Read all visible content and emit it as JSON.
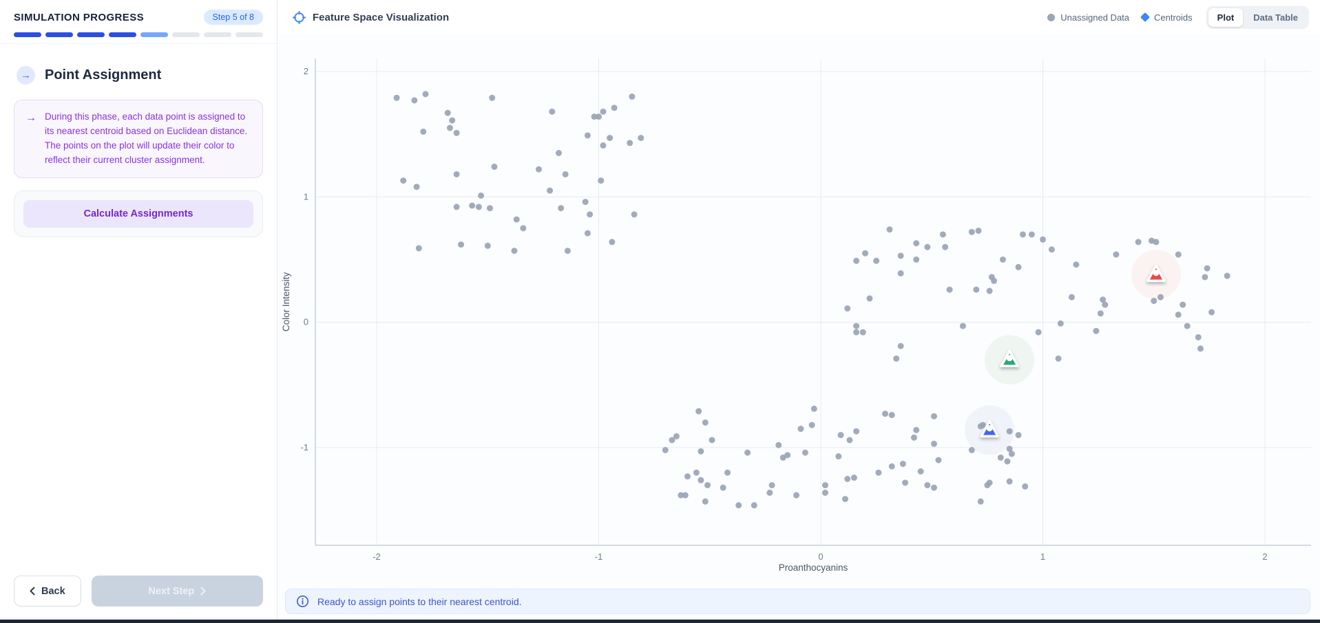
{
  "sidebar": {
    "progress_label": "SIMULATION PROGRESS",
    "step_badge": "Step 5 of 8",
    "progress": {
      "total": 8,
      "completed": 4,
      "current": 1,
      "colors": {
        "done": "#2b4fe0",
        "current": "#77a7f8",
        "upcoming": "#e4e7ec"
      }
    },
    "section": {
      "title": "Point Assignment",
      "description": "During this phase, each data point is assigned to its nearest centroid based on Euclidean distance. The points on the plot will update their color to reflect their current cluster assignment."
    },
    "action_button": "Calculate Assignments",
    "back_button": "Back",
    "next_button": "Next Step"
  },
  "main": {
    "title": "Feature Space Visualization",
    "legend": [
      {
        "label": "Unassigned Data",
        "marker": "circle",
        "color": "#9aa5b6"
      },
      {
        "label": "Centroids",
        "marker": "triangle",
        "color": "#4285f4"
      }
    ],
    "view_toggle": {
      "options": [
        "Plot",
        "Data Table"
      ],
      "active": "Plot"
    },
    "status": "Ready to assign points to their nearest centroid."
  },
  "chart_data": {
    "type": "scatter",
    "title": "Feature Space Visualization",
    "xlabel": "Proanthocyanins",
    "ylabel": "Color Intensity",
    "xlim": [
      -2.28,
      2.2
    ],
    "ylim": [
      -1.78,
      2.1
    ],
    "xticks": [
      -2,
      -1,
      0,
      1,
      2
    ],
    "yticks": [
      -1,
      0,
      1,
      2
    ],
    "grid": true,
    "legend_position": "top-right",
    "series": [
      {
        "name": "Unassigned Data",
        "marker": "circle",
        "color": "#97a2b4",
        "points": [
          [
            -1.91,
            1.79
          ],
          [
            -1.83,
            1.77
          ],
          [
            -1.78,
            1.82
          ],
          [
            -1.68,
            1.67
          ],
          [
            -1.66,
            1.61
          ],
          [
            -1.67,
            1.55
          ],
          [
            -1.64,
            1.51
          ],
          [
            -1.79,
            1.52
          ],
          [
            -1.48,
            1.79
          ],
          [
            -1.21,
            1.68
          ],
          [
            -1.02,
            1.64
          ],
          [
            -1.0,
            1.64
          ],
          [
            -0.98,
            1.68
          ],
          [
            -0.93,
            1.71
          ],
          [
            -0.85,
            1.8
          ],
          [
            -1.05,
            1.49
          ],
          [
            -0.95,
            1.47
          ],
          [
            -0.86,
            1.43
          ],
          [
            -0.81,
            1.47
          ],
          [
            -0.98,
            1.41
          ],
          [
            -1.18,
            1.35
          ],
          [
            -1.47,
            1.24
          ],
          [
            -1.27,
            1.22
          ],
          [
            -1.15,
            1.18
          ],
          [
            -1.64,
            1.18
          ],
          [
            -1.88,
            1.13
          ],
          [
            -1.82,
            1.08
          ],
          [
            -0.99,
            1.13
          ],
          [
            -1.22,
            1.05
          ],
          [
            -1.53,
            1.01
          ],
          [
            -1.64,
            0.92
          ],
          [
            -1.57,
            0.93
          ],
          [
            -1.54,
            0.92
          ],
          [
            -1.49,
            0.91
          ],
          [
            -1.06,
            0.96
          ],
          [
            -1.17,
            0.91
          ],
          [
            -1.37,
            0.82
          ],
          [
            -1.34,
            0.75
          ],
          [
            -1.04,
            0.86
          ],
          [
            -0.84,
            0.86
          ],
          [
            -1.05,
            0.71
          ],
          [
            -0.94,
            0.64
          ],
          [
            -1.62,
            0.62
          ],
          [
            -1.5,
            0.61
          ],
          [
            -1.81,
            0.59
          ],
          [
            -1.38,
            0.57
          ],
          [
            -1.14,
            0.57
          ],
          [
            0.31,
            0.74
          ],
          [
            0.55,
            0.7
          ],
          [
            0.68,
            0.72
          ],
          [
            0.71,
            0.73
          ],
          [
            0.91,
            0.7
          ],
          [
            0.95,
            0.7
          ],
          [
            1.0,
            0.66
          ],
          [
            0.43,
            0.63
          ],
          [
            0.48,
            0.6
          ],
          [
            0.56,
            0.6
          ],
          [
            0.2,
            0.55
          ],
          [
            0.16,
            0.49
          ],
          [
            0.25,
            0.49
          ],
          [
            0.36,
            0.53
          ],
          [
            0.43,
            0.5
          ],
          [
            0.82,
            0.5
          ],
          [
            0.89,
            0.44
          ],
          [
            1.04,
            0.58
          ],
          [
            1.15,
            0.46
          ],
          [
            0.36,
            0.39
          ],
          [
            0.77,
            0.36
          ],
          [
            0.78,
            0.33
          ],
          [
            0.58,
            0.26
          ],
          [
            0.7,
            0.26
          ],
          [
            0.76,
            0.25
          ],
          [
            0.22,
            0.19
          ],
          [
            0.12,
            0.11
          ],
          [
            1.13,
            0.2
          ],
          [
            1.27,
            0.18
          ],
          [
            1.28,
            0.14
          ],
          [
            1.26,
            0.07
          ],
          [
            1.33,
            0.54
          ],
          [
            1.43,
            0.64
          ],
          [
            1.49,
            0.65
          ],
          [
            1.51,
            0.64
          ],
          [
            1.61,
            0.54
          ],
          [
            1.74,
            0.43
          ],
          [
            1.73,
            0.36
          ],
          [
            1.83,
            0.37
          ],
          [
            1.53,
            0.2
          ],
          [
            1.5,
            0.17
          ],
          [
            1.63,
            0.14
          ],
          [
            1.61,
            0.06
          ],
          [
            1.76,
            0.08
          ],
          [
            1.65,
            -0.03
          ],
          [
            1.7,
            -0.12
          ],
          [
            1.71,
            -0.21
          ],
          [
            1.24,
            -0.07
          ],
          [
            1.08,
            -0.01
          ],
          [
            0.16,
            -0.03
          ],
          [
            0.16,
            -0.08
          ],
          [
            0.19,
            -0.08
          ],
          [
            0.64,
            -0.03
          ],
          [
            0.98,
            -0.08
          ],
          [
            0.36,
            -0.19
          ],
          [
            0.34,
            -0.29
          ],
          [
            1.07,
            -0.29
          ],
          [
            -0.55,
            -0.71
          ],
          [
            -0.52,
            -0.8
          ],
          [
            -0.67,
            -0.94
          ],
          [
            -0.65,
            -0.91
          ],
          [
            -0.7,
            -1.02
          ],
          [
            -0.49,
            -0.94
          ],
          [
            -0.54,
            -1.03
          ],
          [
            -0.19,
            -0.98
          ],
          [
            -0.33,
            -1.04
          ],
          [
            -0.17,
            -1.08
          ],
          [
            -0.15,
            -1.06
          ],
          [
            -0.07,
            -1.04
          ],
          [
            -0.03,
            -0.69
          ],
          [
            -0.09,
            -0.85
          ],
          [
            -0.04,
            -0.82
          ],
          [
            0.09,
            -0.9
          ],
          [
            0.13,
            -0.94
          ],
          [
            0.16,
            -0.87
          ],
          [
            0.08,
            -1.07
          ],
          [
            0.29,
            -0.73
          ],
          [
            0.32,
            -0.74
          ],
          [
            0.51,
            -0.75
          ],
          [
            0.43,
            -0.86
          ],
          [
            0.42,
            -0.92
          ],
          [
            0.51,
            -0.97
          ],
          [
            0.53,
            -1.1
          ],
          [
            0.26,
            -1.2
          ],
          [
            0.32,
            -1.15
          ],
          [
            0.37,
            -1.13
          ],
          [
            0.38,
            -1.28
          ],
          [
            0.45,
            -1.19
          ],
          [
            0.48,
            -1.3
          ],
          [
            0.51,
            -1.32
          ],
          [
            0.12,
            -1.25
          ],
          [
            0.15,
            -1.24
          ],
          [
            0.11,
            -1.41
          ],
          [
            0.02,
            -1.36
          ],
          [
            0.02,
            -1.3
          ],
          [
            -0.63,
            -1.38
          ],
          [
            -0.61,
            -1.38
          ],
          [
            -0.52,
            -1.43
          ],
          [
            -0.6,
            -1.23
          ],
          [
            -0.56,
            -1.2
          ],
          [
            -0.54,
            -1.26
          ],
          [
            -0.51,
            -1.3
          ],
          [
            -0.44,
            -1.32
          ],
          [
            -0.42,
            -1.2
          ],
          [
            -0.37,
            -1.46
          ],
          [
            -0.3,
            -1.46
          ],
          [
            -0.23,
            -1.36
          ],
          [
            -0.22,
            -1.3
          ],
          [
            -0.11,
            -1.38
          ],
          [
            0.72,
            -0.83
          ],
          [
            0.73,
            -0.82
          ],
          [
            0.85,
            -0.87
          ],
          [
            0.89,
            -0.9
          ],
          [
            0.68,
            -1.02
          ],
          [
            0.85,
            -1.01
          ],
          [
            0.86,
            -1.05
          ],
          [
            0.81,
            -1.08
          ],
          [
            0.84,
            -1.11
          ],
          [
            0.76,
            -1.28
          ],
          [
            0.75,
            -1.3
          ],
          [
            0.85,
            -1.27
          ],
          [
            0.92,
            -1.31
          ],
          [
            0.72,
            -1.43
          ]
        ]
      },
      {
        "name": "Centroids",
        "marker": "triangle",
        "points": [
          {
            "x": 1.51,
            "y": 0.38,
            "color": "#e74848",
            "halo": "#faf3f2"
          },
          {
            "x": 0.85,
            "y": -0.3,
            "color": "#27a87a",
            "halo": "#eff6f2"
          },
          {
            "x": 0.76,
            "y": -0.86,
            "color": "#3f66f3",
            "halo": "#f0f3fa"
          }
        ]
      }
    ]
  }
}
